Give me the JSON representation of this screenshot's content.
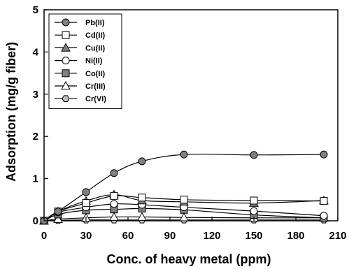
{
  "chart_data": {
    "type": "line",
    "xlabel": "Conc. of heavy metal (ppm)",
    "ylabel": "Adsorption (mg/g fiber)",
    "xlim": [
      0,
      210
    ],
    "ylim": [
      0,
      5
    ],
    "xticks": [
      0,
      30,
      60,
      90,
      120,
      150,
      180,
      210
    ],
    "yticks": [
      0,
      1,
      2,
      3,
      4,
      5
    ],
    "grid": false,
    "legend_position": "top-left",
    "x": [
      0,
      10,
      30,
      50,
      70,
      100,
      150,
      200
    ],
    "series": [
      {
        "name": "Pb(II)",
        "marker": "circle",
        "fill": "#808080",
        "values": [
          0,
          0.22,
          0.68,
          1.13,
          1.41,
          1.57,
          1.56,
          1.57
        ]
      },
      {
        "name": "Cd(II)",
        "marker": "square",
        "fill": "#ffffff",
        "values": [
          0,
          0.22,
          0.42,
          0.59,
          0.55,
          0.5,
          0.48,
          0.47
        ]
      },
      {
        "name": "Cu(II)",
        "marker": "triangle",
        "fill": "#808080",
        "values": [
          0,
          0.22,
          0.47,
          0.62,
          0.48,
          0.45,
          0.42,
          0.48
        ]
      },
      {
        "name": "Ni(II)",
        "marker": "circle",
        "fill": "#ffffff",
        "values": [
          0,
          0.2,
          0.32,
          0.4,
          0.38,
          0.32,
          0.23,
          0.12
        ]
      },
      {
        "name": "Co(II)",
        "marker": "square",
        "fill": "#808080",
        "values": [
          0,
          0.15,
          0.25,
          0.27,
          0.29,
          0.26,
          0.14,
          0.07
        ]
      },
      {
        "name": "Cr(III)",
        "marker": "triangle",
        "fill": "#ffffff",
        "values": [
          0,
          0.04,
          0.07,
          0.09,
          0.09,
          0.08,
          0.07,
          0.07
        ]
      },
      {
        "name": "Cr(VI)",
        "marker": "hexagon",
        "fill": "#c0c0c0",
        "values": [
          0,
          0.01,
          0.02,
          0.02,
          0.02,
          0.02,
          0.02,
          0.02
        ]
      }
    ]
  }
}
